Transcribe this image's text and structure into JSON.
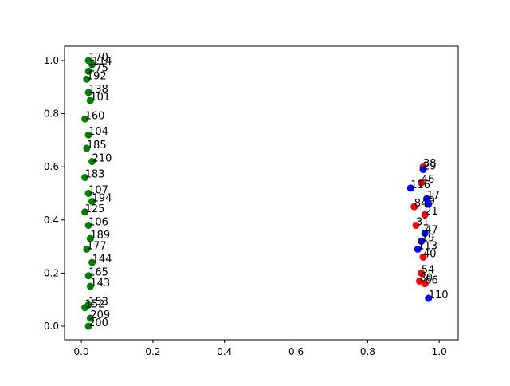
{
  "chart_data": {
    "type": "scatter",
    "xlim": [
      -0.047,
      1.053
    ],
    "ylim": [
      -0.051,
      1.054
    ],
    "xticks": [
      {
        "value": 0,
        "label": "0.0"
      },
      {
        "value": 0.2,
        "label": "0.2"
      },
      {
        "value": 0.4,
        "label": "0.4"
      },
      {
        "value": 0.6,
        "label": "0.6"
      },
      {
        "value": 0.8,
        "label": "0.8"
      },
      {
        "value": 1,
        "label": "1.0"
      }
    ],
    "yticks": [
      {
        "value": 0,
        "label": "0.0"
      },
      {
        "value": 0.2,
        "label": "0.2"
      },
      {
        "value": 0.4,
        "label": "0.4"
      },
      {
        "value": 0.6,
        "label": "0.6"
      },
      {
        "value": 0.8,
        "label": "0.8"
      },
      {
        "value": 1,
        "label": "1.0"
      }
    ],
    "series": [
      {
        "color": "#008000",
        "x": [
          0.02,
          0.03,
          0.02,
          0.015,
          0.02,
          0.025,
          0.01,
          0.02,
          0.015,
          0.03,
          0.01,
          0.02,
          0.03,
          0.01,
          0.02,
          0.025,
          0.015,
          0.03,
          0.02,
          0.025,
          0.01,
          0.02,
          0.025,
          0.02
        ],
        "values": [
          1.0,
          0.985,
          0.96,
          0.93,
          0.88,
          0.85,
          0.78,
          0.72,
          0.67,
          0.62,
          0.56,
          0.5,
          0.47,
          0.43,
          0.38,
          0.33,
          0.29,
          0.24,
          0.19,
          0.15,
          0.07,
          0.08,
          0.03,
          0.0
        ],
        "point_labels": [
          170,
          114,
          175,
          192,
          138,
          101,
          160,
          104,
          185,
          210,
          183,
          107,
          194,
          125,
          106,
          189,
          177,
          144,
          165,
          143,
          152,
          153,
          209,
          200
        ]
      },
      {
        "color": "#ff0000",
        "x": [
          0.955,
          0.95,
          0.93,
          0.96,
          0.935,
          0.955,
          0.95,
          0.96,
          0.945
        ],
        "values": [
          0.6,
          0.54,
          0.45,
          0.42,
          0.38,
          0.26,
          0.2,
          0.16,
          0.17
        ],
        "point_labels": [
          38,
          46,
          84,
          21,
          31,
          40,
          54,
          66,
          80
        ]
      },
      {
        "color": "#0000ff",
        "x": [
          0.97,
          0.95,
          0.96,
          0.97,
          0.965,
          0.92,
          0.955,
          0.94
        ],
        "values": [
          0.105,
          0.32,
          0.35,
          0.46,
          0.48,
          0.52,
          0.59,
          0.29
        ],
        "point_labels": [
          110,
          19,
          47,
          9,
          17,
          116,
          29,
          113
        ]
      }
    ]
  }
}
